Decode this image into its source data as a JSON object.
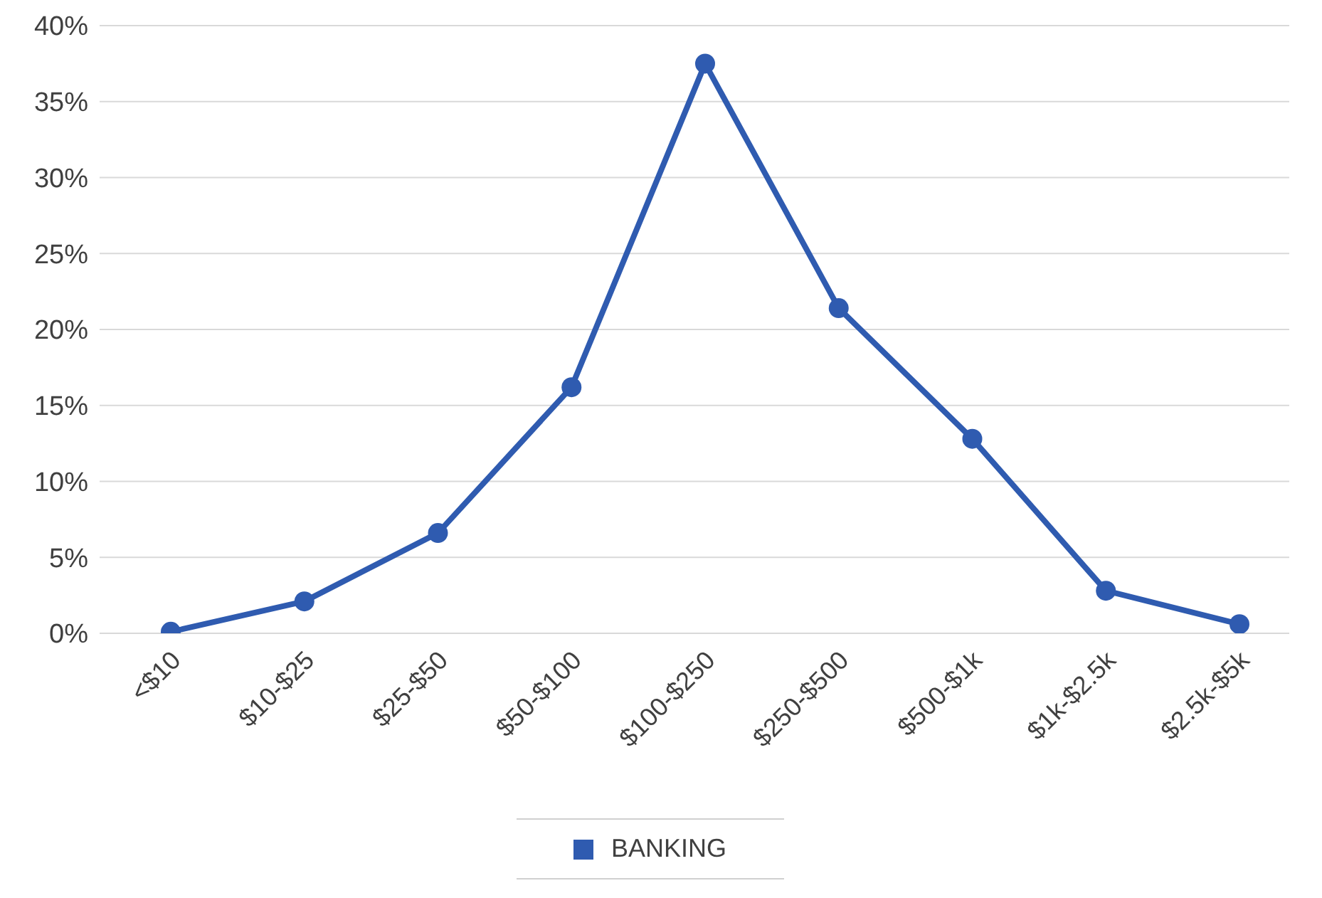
{
  "chart_data": {
    "type": "line",
    "categories": [
      "<$10",
      "$10-$25",
      "$25-$50",
      "$50-$100",
      "$100-$250",
      "$250-$500",
      "$500-$1k",
      "$1k-$2.5k",
      "$2.5k-$5k"
    ],
    "series": [
      {
        "name": "BANKING",
        "color": "#2f5bb0",
        "values": [
          0.1,
          2.1,
          6.6,
          16.2,
          37.5,
          21.4,
          12.8,
          2.8,
          0.6
        ]
      }
    ],
    "ylim": [
      0,
      40
    ],
    "yticks": [
      {
        "value": 0,
        "label": "0%"
      },
      {
        "value": 5,
        "label": "5%"
      },
      {
        "value": 10,
        "label": "10%"
      },
      {
        "value": 15,
        "label": "15%"
      },
      {
        "value": 20,
        "label": "20%"
      },
      {
        "value": 25,
        "label": "25%"
      },
      {
        "value": 30,
        "label": "30%"
      },
      {
        "value": 35,
        "label": "35%"
      },
      {
        "value": 40,
        "label": "40%"
      }
    ],
    "grid": "y",
    "legend": "bottom",
    "marker": "circle",
    "line_style": "solid"
  }
}
